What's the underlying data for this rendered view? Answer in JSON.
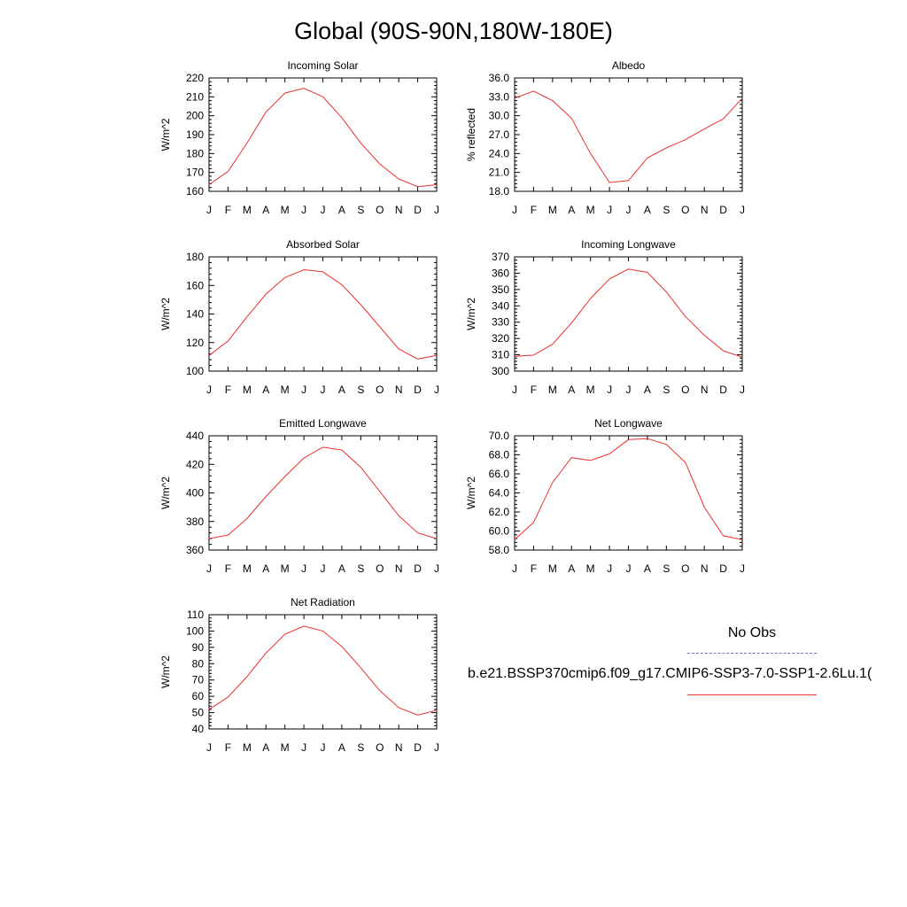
{
  "page_title": "Global (90S-90N,180W-180E)",
  "legend": {
    "obs_label": "No Obs",
    "obs_color": "#7070e0",
    "model_label": "b.e21.BSSP370cmip6.f09_g17.CMIP6-SSP3-7.0-SSP1-2.6Lu.1(",
    "model_color": "#e83030"
  },
  "chart_data": [
    {
      "type": "line",
      "title": "Incoming Solar",
      "ylabel": "W/m^2",
      "categories": [
        "J",
        "F",
        "M",
        "A",
        "M",
        "J",
        "J",
        "A",
        "S",
        "O",
        "N",
        "D",
        "J"
      ],
      "ylim": [
        160,
        220
      ],
      "yticks": [
        "160",
        "170",
        "180",
        "190",
        "200",
        "210",
        "220"
      ],
      "series": [
        {
          "values": [
            163.5,
            170.5,
            185.5,
            202,
            212,
            214.5,
            210,
            199,
            185.5,
            174.5,
            166.5,
            162.5,
            163.5
          ]
        }
      ]
    },
    {
      "type": "line",
      "title": "Albedo",
      "ylabel": "% reflected",
      "categories": [
        "J",
        "F",
        "M",
        "A",
        "M",
        "J",
        "J",
        "A",
        "S",
        "O",
        "N",
        "D",
        "J"
      ],
      "ylim": [
        18,
        36
      ],
      "yticks": [
        "18.0",
        "21.0",
        "24.0",
        "27.0",
        "30.0",
        "33.0",
        "36.0"
      ],
      "series": [
        {
          "values": [
            32.8,
            33.9,
            32.4,
            29.6,
            24.0,
            19.4,
            19.7,
            23.3,
            24.9,
            26.2,
            27.9,
            29.5,
            32.8
          ]
        }
      ]
    },
    {
      "type": "line",
      "title": "Absorbed Solar",
      "ylabel": "W/m^2",
      "categories": [
        "J",
        "F",
        "M",
        "A",
        "M",
        "J",
        "J",
        "A",
        "S",
        "O",
        "N",
        "D",
        "J"
      ],
      "ylim": [
        100,
        180
      ],
      "yticks": [
        "100",
        "120",
        "140",
        "160",
        "180"
      ],
      "series": [
        {
          "values": [
            111,
            121,
            138,
            154,
            165.5,
            171,
            169.5,
            160.5,
            146.5,
            131,
            115.5,
            108.5,
            111
          ]
        }
      ]
    },
    {
      "type": "line",
      "title": "Incoming Longwave",
      "ylabel": "W/m^2",
      "categories": [
        "J",
        "F",
        "M",
        "A",
        "M",
        "J",
        "J",
        "A",
        "S",
        "O",
        "N",
        "D",
        "J"
      ],
      "ylim": [
        300,
        370
      ],
      "yticks": [
        "300",
        "310",
        "320",
        "330",
        "340",
        "350",
        "360",
        "370"
      ],
      "series": [
        {
          "values": [
            309,
            309.8,
            316.5,
            329.5,
            344.5,
            356.5,
            362.5,
            360.5,
            348.5,
            333.5,
            322,
            312.5,
            308.5
          ]
        }
      ]
    },
    {
      "type": "line",
      "title": "Emitted Longwave",
      "ylabel": "W/m^2",
      "categories": [
        "J",
        "F",
        "M",
        "A",
        "M",
        "J",
        "J",
        "A",
        "S",
        "O",
        "N",
        "D",
        "J"
      ],
      "ylim": [
        360,
        440
      ],
      "yticks": [
        "360",
        "380",
        "400",
        "420",
        "440"
      ],
      "series": [
        {
          "values": [
            368,
            370.5,
            382,
            397.5,
            411.5,
            424.5,
            432,
            430,
            418,
            401,
            384,
            372,
            368
          ]
        }
      ]
    },
    {
      "type": "line",
      "title": "Net Longwave",
      "ylabel": "W/m^2",
      "categories": [
        "J",
        "F",
        "M",
        "A",
        "M",
        "J",
        "J",
        "A",
        "S",
        "O",
        "N",
        "D",
        "J"
      ],
      "ylim": [
        58,
        70
      ],
      "yticks": [
        "58.0",
        "60.0",
        "62.0",
        "64.0",
        "66.0",
        "68.0",
        "70.0"
      ],
      "series": [
        {
          "values": [
            59.1,
            60.9,
            65.1,
            67.7,
            67.4,
            68.1,
            69.6,
            69.7,
            69.1,
            67.2,
            62.5,
            59.5,
            59.1
          ]
        }
      ]
    },
    {
      "type": "line",
      "title": "Net Radiation",
      "ylabel": "W/m^2",
      "categories": [
        "J",
        "F",
        "M",
        "A",
        "M",
        "J",
        "J",
        "A",
        "S",
        "O",
        "N",
        "D",
        "J"
      ],
      "ylim": [
        40,
        110
      ],
      "yticks": [
        "40",
        "50",
        "60",
        "70",
        "80",
        "90",
        "100",
        "110"
      ],
      "series": [
        {
          "values": [
            52,
            59.5,
            72,
            86.5,
            98,
            103,
            100,
            90.5,
            77.5,
            63.5,
            53,
            48.5,
            51.5
          ]
        }
      ]
    }
  ]
}
